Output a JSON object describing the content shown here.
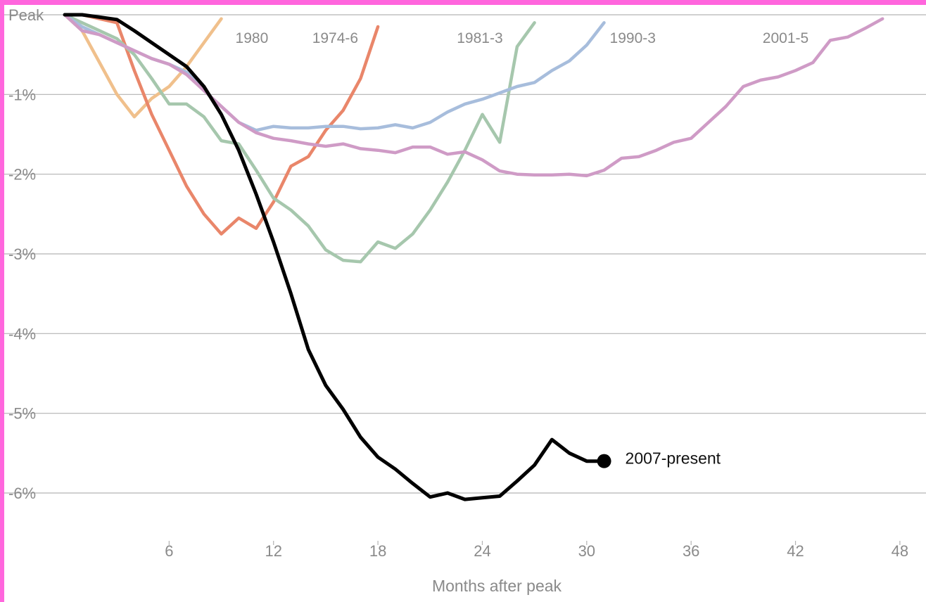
{
  "chart_data": {
    "type": "line",
    "xlabel": "Months after peak",
    "x_ticks": [
      6,
      12,
      18,
      24,
      30,
      36,
      42,
      48
    ],
    "y_ticks": [
      {
        "value": 0,
        "label": "Peak"
      },
      {
        "value": -1,
        "label": "-1%"
      },
      {
        "value": -2,
        "label": "-2%"
      },
      {
        "value": -3,
        "label": "-3%"
      },
      {
        "value": -4,
        "label": "-4%"
      },
      {
        "value": -5,
        "label": "-5%"
      },
      {
        "value": -6,
        "label": "-6%"
      }
    ],
    "xlim": [
      0,
      49.5
    ],
    "ylim": [
      -6.6,
      0
    ],
    "grid": true,
    "series": [
      {
        "name": "1980",
        "color": "#f0c08c",
        "x": [
          0,
          1,
          2,
          3,
          4,
          5,
          6,
          7,
          8,
          9
        ],
        "y": [
          0,
          -0.2,
          -0.6,
          -1.0,
          -1.28,
          -1.05,
          -0.9,
          -0.65,
          -0.35,
          -0.05
        ]
      },
      {
        "name": "1974-6",
        "color": "#e9866a",
        "x": [
          0,
          1,
          2,
          3,
          4,
          5,
          6,
          7,
          8,
          9,
          10,
          11,
          12,
          13,
          14,
          15,
          16,
          17,
          18
        ],
        "y": [
          0,
          0,
          -0.05,
          -0.1,
          -0.7,
          -1.25,
          -1.7,
          -2.15,
          -2.5,
          -2.75,
          -2.55,
          -2.68,
          -2.35,
          -1.9,
          -1.78,
          -1.45,
          -1.2,
          -0.8,
          -0.15
        ]
      },
      {
        "name": "1981-3",
        "color": "#a6c7ad",
        "x": [
          0,
          1,
          2,
          3,
          4,
          5,
          6,
          7,
          8,
          9,
          10,
          11,
          12,
          13,
          14,
          15,
          16,
          17,
          18,
          19,
          20,
          21,
          22,
          23,
          24,
          25,
          26,
          27
        ],
        "y": [
          0,
          -0.1,
          -0.2,
          -0.3,
          -0.5,
          -0.8,
          -1.12,
          -1.12,
          -1.28,
          -1.58,
          -1.62,
          -1.95,
          -2.3,
          -2.45,
          -2.65,
          -2.95,
          -3.08,
          -3.1,
          -2.85,
          -2.93,
          -2.75,
          -2.45,
          -2.1,
          -1.7,
          -1.25,
          -1.6,
          -0.4,
          -0.1
        ]
      },
      {
        "name": "1990-3",
        "color": "#a7bddc",
        "x": [
          0,
          1,
          2,
          3,
          4,
          5,
          6,
          7,
          8,
          9,
          10,
          11,
          12,
          13,
          14,
          15,
          16,
          17,
          18,
          19,
          20,
          21,
          22,
          23,
          24,
          25,
          26,
          27,
          28,
          29,
          30,
          31
        ],
        "y": [
          0,
          -0.15,
          -0.25,
          -0.35,
          -0.45,
          -0.55,
          -0.62,
          -0.72,
          -0.95,
          -1.15,
          -1.35,
          -1.45,
          -1.4,
          -1.42,
          -1.42,
          -1.4,
          -1.4,
          -1.43,
          -1.42,
          -1.38,
          -1.42,
          -1.35,
          -1.22,
          -1.12,
          -1.06,
          -0.98,
          -0.9,
          -0.85,
          -0.7,
          -0.58,
          -0.38,
          -0.1
        ]
      },
      {
        "name": "2001-5",
        "color": "#cf9bc6",
        "x": [
          0,
          1,
          2,
          3,
          4,
          5,
          6,
          7,
          8,
          9,
          10,
          11,
          12,
          13,
          14,
          15,
          16,
          17,
          18,
          19,
          20,
          21,
          22,
          23,
          24,
          25,
          26,
          27,
          28,
          29,
          30,
          31,
          32,
          33,
          34,
          35,
          36,
          37,
          38,
          39,
          40,
          41,
          42,
          43,
          44,
          45,
          46,
          47
        ],
        "y": [
          0,
          -0.2,
          -0.25,
          -0.35,
          -0.45,
          -0.55,
          -0.62,
          -0.75,
          -0.95,
          -1.15,
          -1.35,
          -1.48,
          -1.55,
          -1.58,
          -1.62,
          -1.65,
          -1.62,
          -1.68,
          -1.7,
          -1.73,
          -1.66,
          -1.66,
          -1.75,
          -1.72,
          -1.82,
          -1.96,
          -2.0,
          -2.01,
          -2.01,
          -2.0,
          -2.02,
          -1.95,
          -1.8,
          -1.78,
          -1.7,
          -1.6,
          -1.55,
          -1.35,
          -1.15,
          -0.9,
          -0.82,
          -0.78,
          -0.7,
          -0.6,
          -0.32,
          -0.28,
          -0.17,
          -0.05
        ]
      },
      {
        "name": "2007-present",
        "color": "#000000",
        "x": [
          0,
          1,
          2,
          3,
          4,
          5,
          6,
          7,
          8,
          9,
          10,
          11,
          12,
          13,
          14,
          15,
          16,
          17,
          18,
          19,
          20,
          21,
          22,
          23,
          24,
          25,
          26,
          27,
          28,
          29,
          30,
          31
        ],
        "y": [
          0,
          0,
          -0.03,
          -0.06,
          -0.2,
          -0.35,
          -0.5,
          -0.65,
          -0.9,
          -1.25,
          -1.7,
          -2.25,
          -2.85,
          -3.5,
          -4.2,
          -4.65,
          -4.95,
          -5.3,
          -5.55,
          -5.7,
          -5.88,
          -6.05,
          -6.0,
          -6.08,
          -6.06,
          -6.04,
          -5.85,
          -5.65,
          -5.33,
          -5.5,
          -5.6,
          -5.6
        ]
      }
    ]
  }
}
